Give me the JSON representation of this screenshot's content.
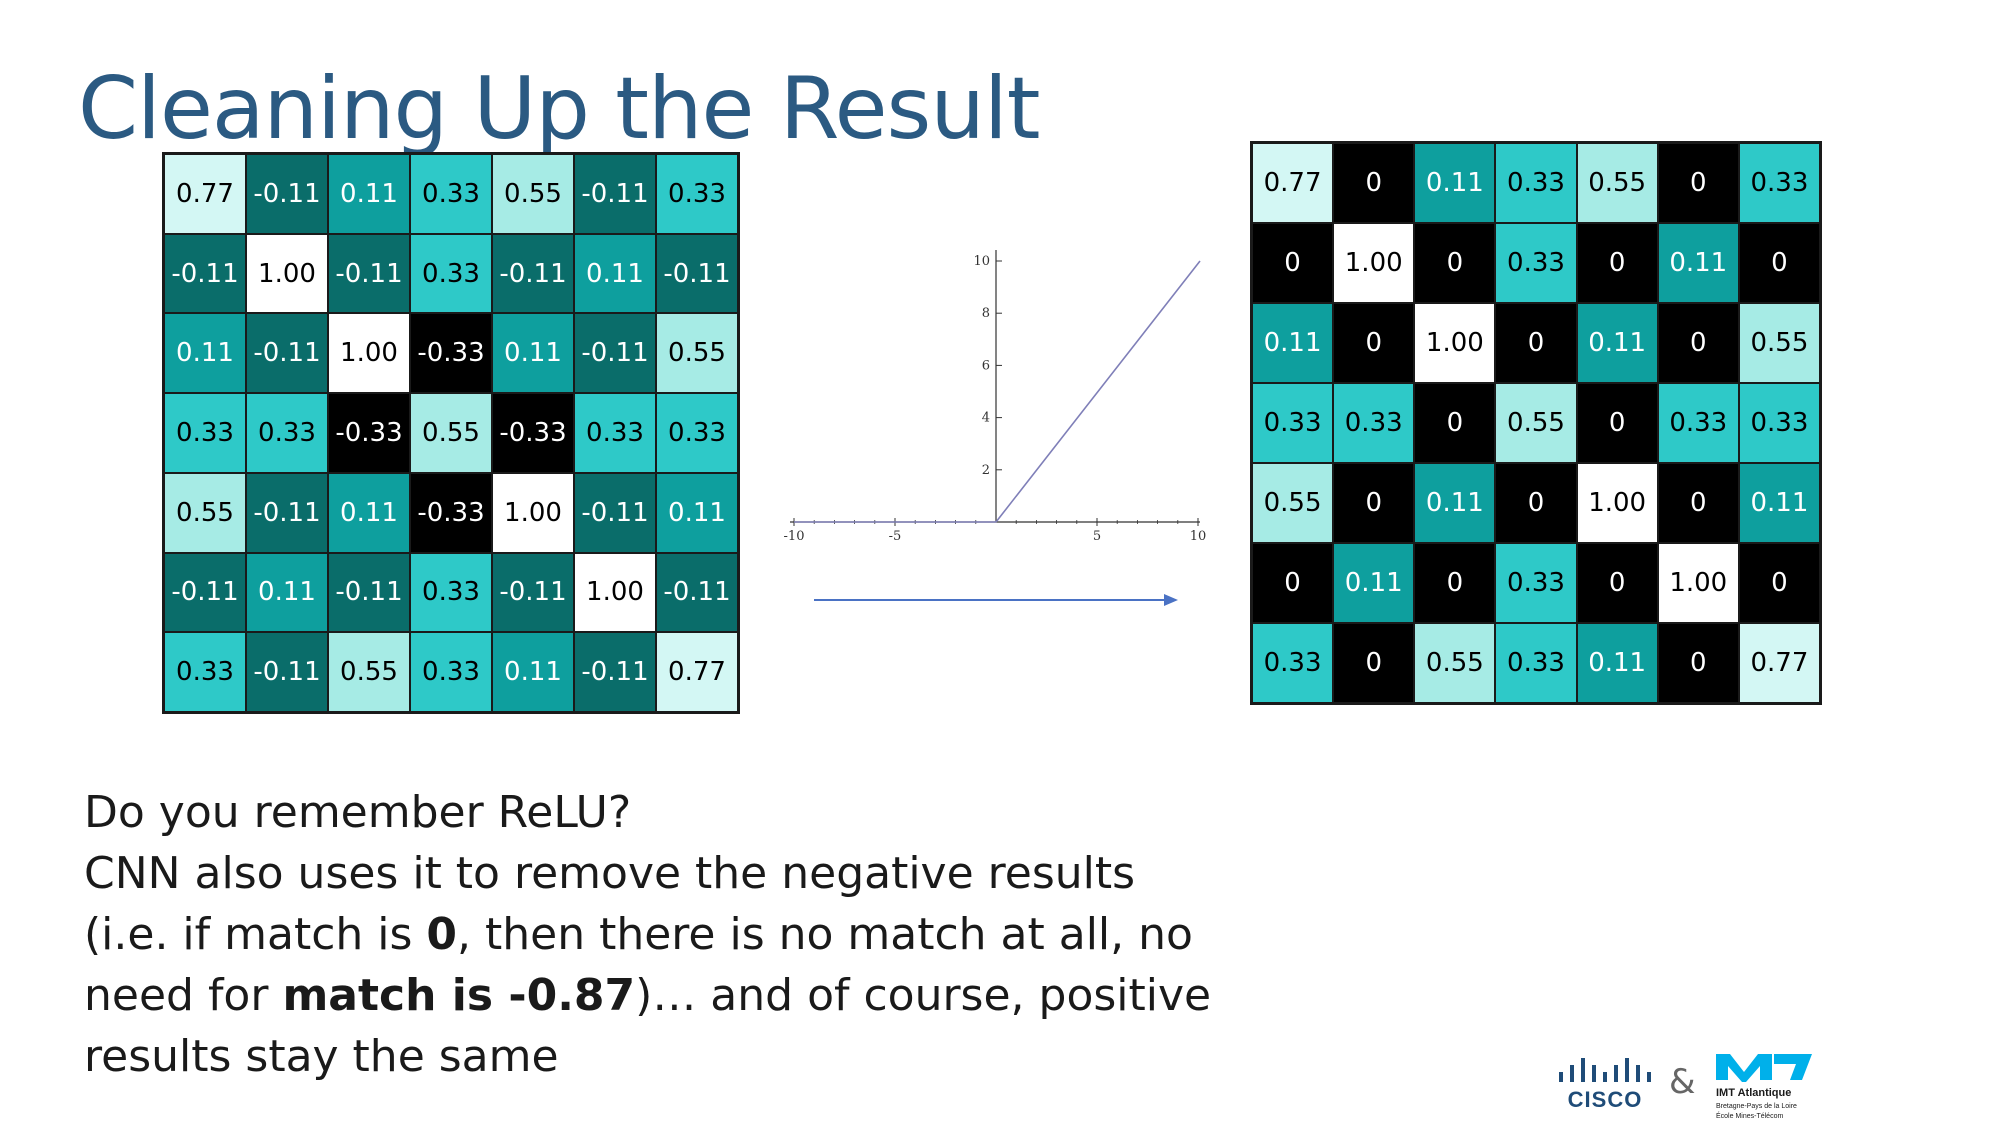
{
  "slide": {
    "title": "Cleaning Up the Result"
  },
  "colors": {
    "black": "#000000",
    "dark_teal": "#0a6d6a",
    "teal": "#0e9f9e",
    "mid_teal": "#2ec9c8",
    "light_teal": "#a6ebe5",
    "pale": "#d3f7f4",
    "white": "#ffffff",
    "arrow": "#4a72c4",
    "relu_line": "#7f7fb8"
  },
  "left_matrix": {
    "cells": [
      [
        "0.77",
        "-0.11",
        "0.11",
        "0.33",
        "0.55",
        "-0.11",
        "0.33"
      ],
      [
        "-0.11",
        "1.00",
        "-0.11",
        "0.33",
        "-0.11",
        "0.11",
        "-0.11"
      ],
      [
        "0.11",
        "-0.11",
        "1.00",
        "-0.33",
        "0.11",
        "-0.11",
        "0.55"
      ],
      [
        "0.33",
        "0.33",
        "-0.33",
        "0.55",
        "-0.33",
        "0.33",
        "0.33"
      ],
      [
        "0.55",
        "-0.11",
        "0.11",
        "-0.33",
        "1.00",
        "-0.11",
        "0.11"
      ],
      [
        "-0.11",
        "0.11",
        "-0.11",
        "0.33",
        "-0.11",
        "1.00",
        "-0.11"
      ],
      [
        "0.33",
        "-0.11",
        "0.55",
        "0.33",
        "0.11",
        "-0.11",
        "0.77"
      ]
    ]
  },
  "right_matrix": {
    "cells": [
      [
        "0.77",
        "0",
        "0.11",
        "0.33",
        "0.55",
        "0",
        "0.33"
      ],
      [
        "0",
        "1.00",
        "0",
        "0.33",
        "0",
        "0.11",
        "0"
      ],
      [
        "0.11",
        "0",
        "1.00",
        "0",
        "0.11",
        "0",
        "0.55"
      ],
      [
        "0.33",
        "0.33",
        "0",
        "0.55",
        "0",
        "0.33",
        "0.33"
      ],
      [
        "0.55",
        "0",
        "0.11",
        "0",
        "1.00",
        "0",
        "0.11"
      ],
      [
        "0",
        "0.11",
        "0",
        "0.33",
        "0",
        "1.00",
        "0"
      ],
      [
        "0.33",
        "0",
        "0.55",
        "0.33",
        "0.11",
        "0",
        "0.77"
      ]
    ]
  },
  "relu_plot": {
    "x_ticks": [
      "-10",
      "-5",
      "5",
      "10"
    ],
    "y_ticks": [
      "2",
      "4",
      "6",
      "8",
      "10"
    ]
  },
  "body": {
    "line1": "Do you remember ReLU?",
    "line2_pre": "CNN also uses it to remove the negative results (i.e. if match is ",
    "bold1": "0",
    "line2_mid": ", then there is no match at all, no need for ",
    "bold2": "match is -0.87",
    "line2_post": ")… and of course, positive results stay the same"
  },
  "logos": {
    "cisco_text": "CISCO",
    "ampersand": "&",
    "imt_name": "IMT Atlantique",
    "imt_line1": "Bretagne-Pays de la Loire",
    "imt_line2": "École Mines-Télécom"
  }
}
